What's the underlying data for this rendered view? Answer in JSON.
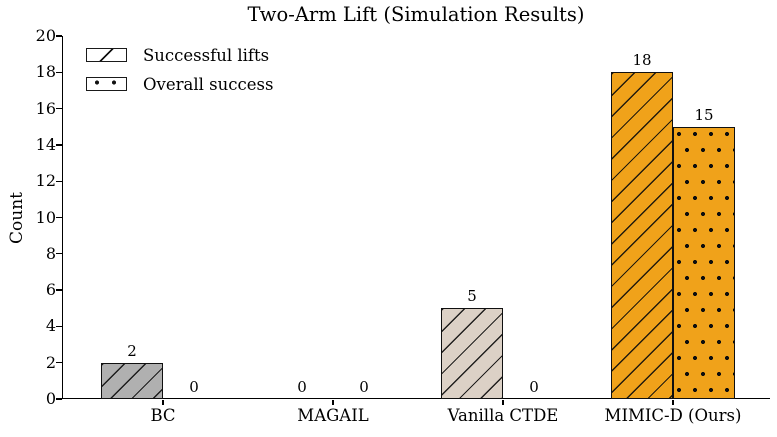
{
  "chart_data": {
    "type": "bar",
    "title": "Two-Arm Lift (Simulation Results)",
    "xlabel": "",
    "ylabel": "Count",
    "ylim": [
      0,
      20
    ],
    "yticks": [
      0,
      2,
      4,
      6,
      8,
      10,
      12,
      14,
      16,
      18,
      20
    ],
    "grid": false,
    "legend_position": "upper-left",
    "categories": [
      "BC",
      "MAGAIL",
      "Vanilla CTDE",
      "MIMIC-D (Ours)"
    ],
    "series": [
      {
        "name": "Successful lifts",
        "hatch": "diagonal",
        "values": [
          2,
          0,
          5,
          18
        ]
      },
      {
        "name": "Overall success",
        "hatch": "dots",
        "values": [
          0,
          0,
          0,
          15
        ]
      }
    ],
    "value_labels": [
      [
        "2",
        "0"
      ],
      [
        "0",
        "0"
      ],
      [
        "5",
        "0"
      ],
      [
        "18",
        "15"
      ]
    ],
    "colors": {
      "bar_fill_by_category": [
        "#B0B0B0",
        "#B0B0B0",
        "#DCD1C6",
        "#F0A21A"
      ],
      "bar_edge": "#101010",
      "hatch": "#0e0e0e",
      "axis": "#000000",
      "text": "#000000",
      "background": "#ffffff"
    }
  }
}
